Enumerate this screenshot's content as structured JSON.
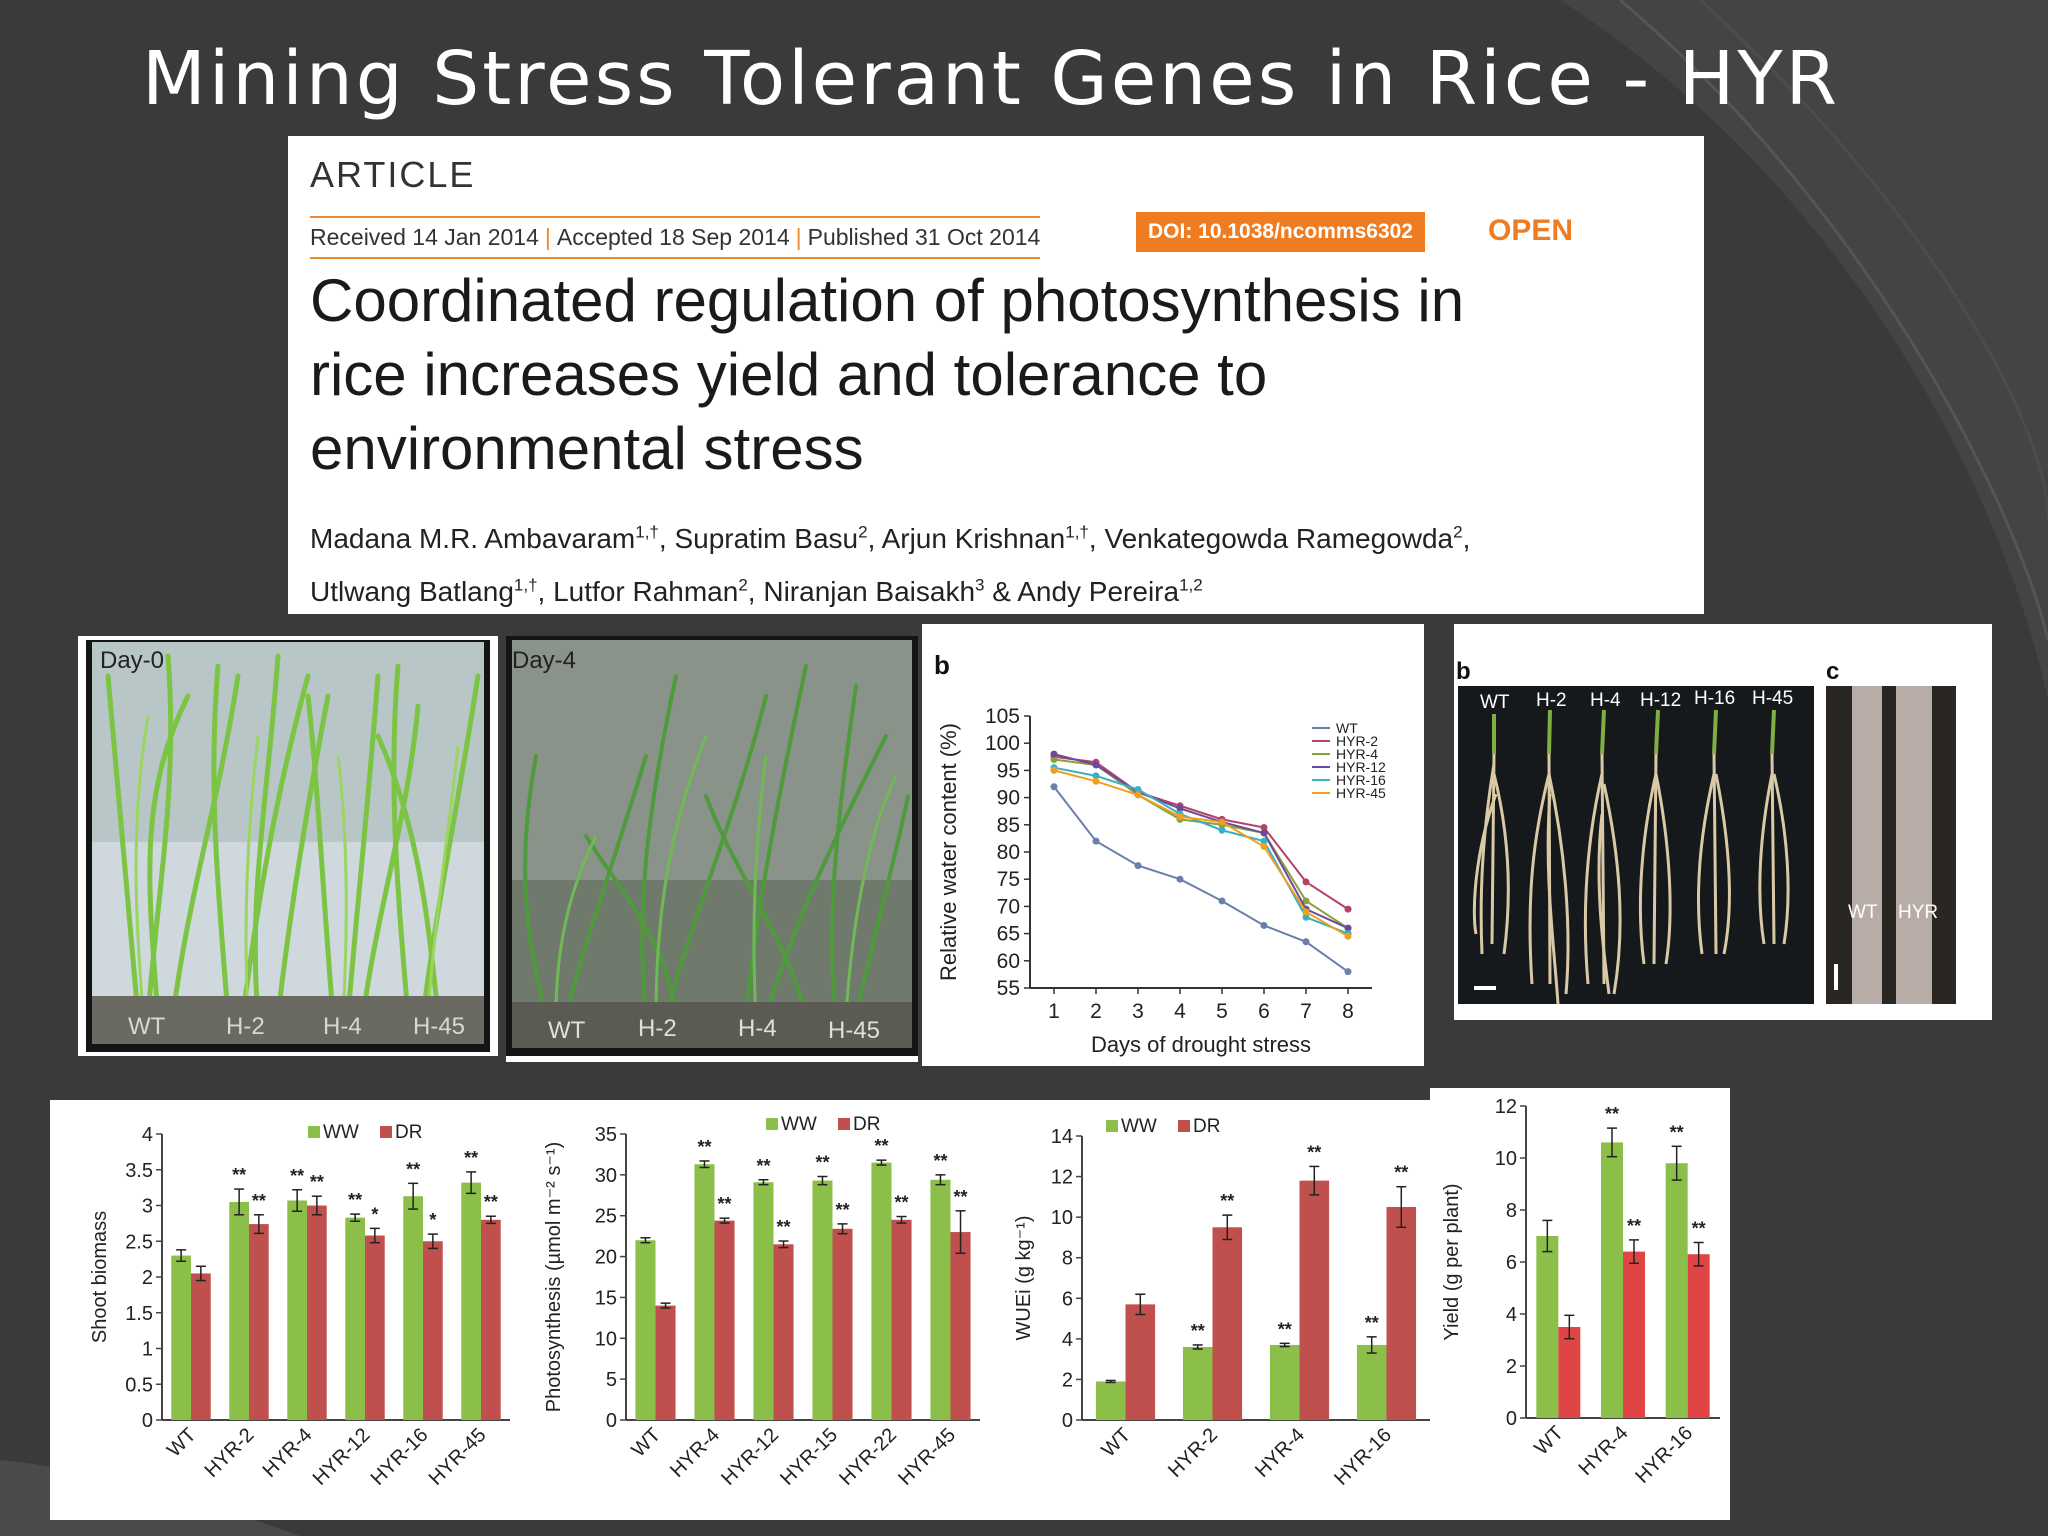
{
  "slide_title": "Mining Stress Tolerant Genes in Rice - HYR",
  "article": {
    "label": "ARTICLE",
    "received": "Received 14 Jan 2014",
    "accepted": "Accepted 18 Sep 2014",
    "published": "Published 31 Oct 2014",
    "doi": "DOI: 10.1038/ncomms6302",
    "open": "OPEN",
    "title": "Coordinated regulation of photosynthesis in rice increases yield and tolerance to environmental stress",
    "authors": [
      {
        "name": "Madana M.R. Ambavaram",
        "aff": "1,†"
      },
      {
        "name": "Supratim Basu",
        "aff": "2"
      },
      {
        "name": "Arjun Krishnan",
        "aff": "1,†"
      },
      {
        "name": "Venkategowda Ramegowda",
        "aff": "2"
      },
      {
        "name": "Utlwang Batlang",
        "aff": "1,†"
      },
      {
        "name": "Lutfor Rahman",
        "aff": "2"
      },
      {
        "name": "Niranjan Baisakh",
        "aff": "3"
      },
      {
        "name": "Andy Pereira",
        "aff": "1,2"
      }
    ]
  },
  "photos": {
    "day0": {
      "tag": "Day-0",
      "labels": [
        "WT",
        "H-2",
        "H-4",
        "H-45"
      ]
    },
    "day4": {
      "tag": "Day-4",
      "labels": [
        "WT",
        "H-2",
        "H-4",
        "H-45"
      ]
    },
    "roots": {
      "panel_b": "b",
      "panel_c": "c",
      "labels": [
        "WT",
        "H-2",
        "H-4",
        "H-12",
        "H-16",
        "H-45"
      ],
      "close_labels": [
        "WT",
        "HYR"
      ]
    }
  },
  "colors": {
    "ww": "#8cbf4a",
    "dr": "#c0504d",
    "dr_yield": "#e04545",
    "article_accent": "#f07c22",
    "background": "#3a3a3a"
  },
  "chart_data": [
    {
      "type": "line",
      "panel_label": "b",
      "xlabel": "Days of drought stress",
      "ylabel": "Relative water content (%)",
      "x": [
        1,
        2,
        3,
        4,
        5,
        6,
        7,
        8
      ],
      "xlim": [
        1,
        8
      ],
      "ylim": [
        55,
        105
      ],
      "yticks": [
        55,
        60,
        65,
        70,
        75,
        80,
        85,
        90,
        95,
        100,
        105
      ],
      "legend": "top-right",
      "series": [
        {
          "name": "WT",
          "color": "#6b7fae",
          "values": [
            92,
            82,
            77.5,
            75,
            71,
            66.5,
            63.5,
            58
          ]
        },
        {
          "name": "HYR-2",
          "color": "#b2426a",
          "values": [
            97.5,
            96.5,
            91,
            88.5,
            86,
            84.5,
            74.5,
            69.5
          ]
        },
        {
          "name": "HYR-4",
          "color": "#8aa03a",
          "values": [
            97,
            96,
            90.5,
            86,
            85,
            83.5,
            71,
            66
          ]
        },
        {
          "name": "HYR-12",
          "color": "#6a4a9a",
          "values": [
            98,
            96,
            91,
            88,
            85.5,
            83.5,
            69.5,
            66
          ]
        },
        {
          "name": "HYR-16",
          "color": "#3ab0c0",
          "values": [
            95.5,
            94,
            91.5,
            87,
            84,
            82,
            68,
            65
          ]
        },
        {
          "name": "HYR-45",
          "color": "#f0a020",
          "values": [
            95,
            93,
            90.5,
            86.5,
            85.5,
            81,
            69,
            64.5
          ]
        }
      ]
    },
    {
      "type": "bar",
      "ylabel": "Shoot biomass",
      "categories": [
        "WT",
        "HYR-2",
        "HYR-4",
        "HYR-12",
        "HYR-16",
        "HYR-45"
      ],
      "ylim": [
        0,
        4
      ],
      "yticks": [
        0,
        0.5,
        1,
        1.5,
        2,
        2.5,
        3,
        3.5,
        4
      ],
      "legend": "top",
      "series": [
        {
          "name": "WW",
          "values": [
            2.3,
            3.05,
            3.07,
            2.83,
            3.13,
            3.32
          ],
          "errors": [
            0.08,
            0.18,
            0.15,
            0.05,
            0.18,
            0.15
          ],
          "sig": [
            "",
            "**",
            "**",
            "**",
            "**",
            "**"
          ]
        },
        {
          "name": "DR",
          "values": [
            2.05,
            2.74,
            3.0,
            2.58,
            2.5,
            2.8
          ],
          "errors": [
            0.1,
            0.13,
            0.13,
            0.1,
            0.1,
            0.05
          ],
          "sig": [
            "",
            "**",
            "**",
            "*",
            "*",
            "**"
          ]
        }
      ]
    },
    {
      "type": "bar",
      "ylabel": "Photosynthesis (µmol m⁻² s⁻¹)",
      "categories": [
        "WT",
        "HYR-4",
        "HYR-12",
        "HYR-15",
        "HYR-22",
        "HYR-45"
      ],
      "ylim": [
        0,
        35
      ],
      "yticks": [
        0,
        5,
        10,
        15,
        20,
        25,
        30,
        35
      ],
      "legend": "top",
      "series": [
        {
          "name": "WW",
          "values": [
            22,
            31.3,
            29.1,
            29.3,
            31.5,
            29.4
          ],
          "errors": [
            0.3,
            0.4,
            0.3,
            0.5,
            0.3,
            0.6
          ],
          "sig": [
            "",
            "**",
            "**",
            "**",
            "**",
            "**"
          ]
        },
        {
          "name": "DR",
          "values": [
            14,
            24.4,
            21.5,
            23.4,
            24.5,
            23
          ],
          "errors": [
            0.3,
            0.3,
            0.4,
            0.6,
            0.4,
            2.6
          ],
          "sig": [
            "",
            "**",
            "**",
            "**",
            "**",
            "**"
          ]
        }
      ]
    },
    {
      "type": "bar",
      "ylabel": "WUEi (g kg⁻¹)",
      "categories": [
        "WT",
        "HYR-2",
        "HYR-4",
        "HYR-16"
      ],
      "ylim": [
        0,
        14
      ],
      "yticks": [
        0,
        2,
        4,
        6,
        8,
        10,
        12,
        14
      ],
      "legend": "top",
      "series": [
        {
          "name": "WW",
          "values": [
            1.9,
            3.6,
            3.7,
            3.7
          ],
          "errors": [
            0.05,
            0.1,
            0.08,
            0.4
          ],
          "sig": [
            "",
            "**",
            "**",
            "**"
          ]
        },
        {
          "name": "DR",
          "values": [
            5.7,
            9.5,
            11.8,
            10.5
          ],
          "errors": [
            0.5,
            0.6,
            0.7,
            1.0
          ],
          "sig": [
            "",
            "**",
            "**",
            "**"
          ]
        }
      ]
    },
    {
      "type": "bar",
      "ylabel": "Yield (g per plant)",
      "categories": [
        "WT",
        "HYR-4",
        "HYR-16"
      ],
      "ylim": [
        0,
        12
      ],
      "yticks": [
        0,
        2,
        4,
        6,
        8,
        10,
        12
      ],
      "series": [
        {
          "name": "WW",
          "values": [
            7,
            10.6,
            9.8
          ],
          "errors": [
            0.6,
            0.55,
            0.65
          ],
          "sig": [
            "",
            "**",
            "**"
          ]
        },
        {
          "name": "DR",
          "values": [
            3.5,
            6.4,
            6.3
          ],
          "errors": [
            0.45,
            0.45,
            0.45
          ],
          "sig": [
            "",
            "**",
            "**"
          ]
        }
      ]
    }
  ]
}
